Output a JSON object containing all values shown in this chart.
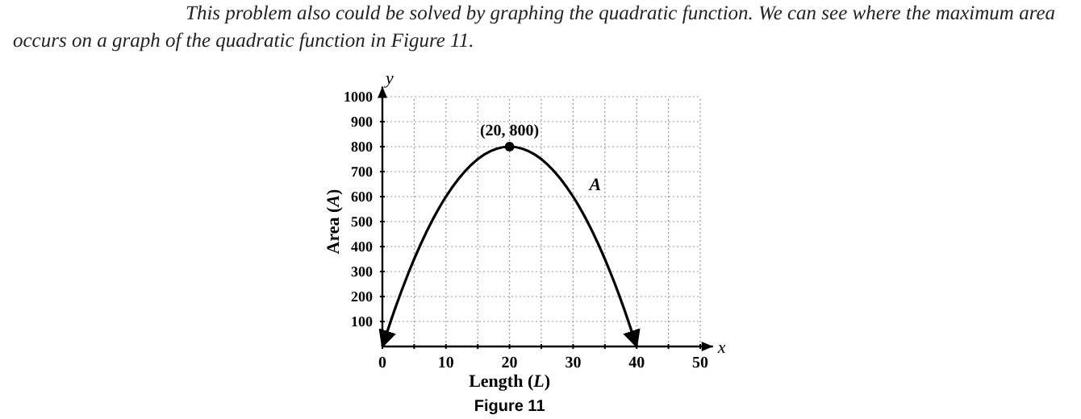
{
  "chart_data": {
    "type": "line",
    "title": "This problem also could be solved by graphing the quadratic function. We can see where the maximum area occurs on a graph of the quadratic function in Figure 11.",
    "xlabel": "Length (L)",
    "ylabel": "Area (A)",
    "x": [
      0,
      2,
      4,
      6,
      8,
      10,
      12,
      14,
      16,
      18,
      20,
      22,
      24,
      26,
      28,
      30,
      32,
      34,
      36,
      38,
      40
    ],
    "series": [
      {
        "name": "A",
        "color": "#000000",
        "values": [
          0,
          152,
          288,
          408,
          512,
          600,
          672,
          728,
          768,
          792,
          800,
          792,
          768,
          728,
          672,
          600,
          512,
          408,
          288,
          152,
          0
        ]
      },
      {
        "type": "scatter",
        "color": "#000000",
        "x": [
          20
        ],
        "values": [
          800
        ],
        "marker": "circle"
      }
    ],
    "xlim": [
      0,
      52
    ],
    "ylim": [
      0,
      1040
    ],
    "xticks": [
      0,
      {
        "value": 5,
        "label": null
      },
      10,
      {
        "value": 15,
        "label": null
      },
      20,
      {
        "value": 25,
        "label": null
      },
      30,
      {
        "value": 35,
        "label": null
      },
      40,
      {
        "value": 45,
        "label": null
      },
      50
    ],
    "yticks": [
      100,
      200,
      300,
      400,
      500,
      600,
      700,
      800,
      900,
      1000
    ],
    "grid": true,
    "line_style": "solid",
    "annotations": [
      {
        "text": "(20, 800)",
        "x": 20,
        "y": 800
      },
      "x",
      "y",
      "Figure 11"
    ]
  }
}
